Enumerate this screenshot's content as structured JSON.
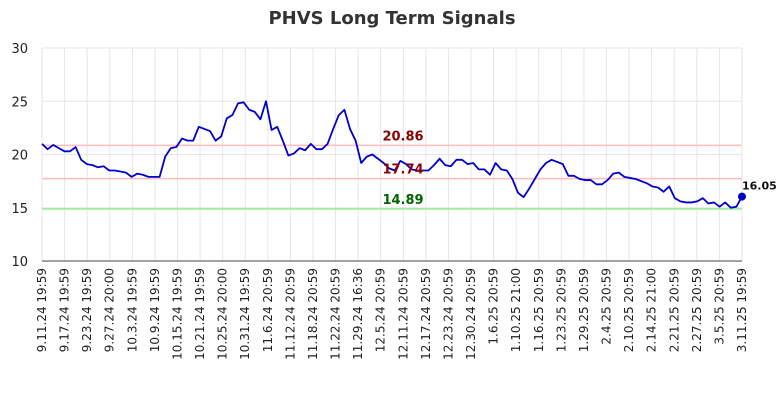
{
  "chart_data": {
    "type": "line",
    "title": "PHVS Long Term Signals",
    "xlabel": "",
    "ylabel": "",
    "ylim": [
      10,
      30
    ],
    "yticks": [
      10,
      15,
      20,
      25,
      30
    ],
    "grid": true,
    "x_tick_labels": [
      "9.11.24 19:59",
      "9.17.24 19:59",
      "9.23.24 19:59",
      "9.27.24 20:00",
      "10.3.24 19:59",
      "10.9.24 19:59",
      "10.15.24 19:59",
      "10.21.24 19:59",
      "10.25.24 20:00",
      "10.31.24 19:59",
      "11.6.24 20:59",
      "11.12.24 20:59",
      "11.18.24 20:59",
      "11.22.24 20:59",
      "11.29.24 16:36",
      "12.5.24 20:59",
      "12.11.24 20:59",
      "12.17.24 20:59",
      "12.23.24 20:59",
      "12.30.24 20:59",
      "1.6.25 20:59",
      "1.10.25 21:00",
      "1.16.25 20:59",
      "1.23.25 20:59",
      "1.29.25 20:59",
      "2.4.25 20:59",
      "2.10.25 20:59",
      "2.14.25 21:00",
      "2.21.25 20:59",
      "2.27.25 20:59",
      "3.5.25 20:59",
      "3.11.25 19:59"
    ],
    "series": [
      {
        "color": "#0000cc",
        "values": [
          21.0,
          20.5,
          20.9,
          20.6,
          20.3,
          20.3,
          20.7,
          19.5,
          19.1,
          19.0,
          18.8,
          18.9,
          18.5,
          18.5,
          18.4,
          18.3,
          17.9,
          18.2,
          18.1,
          17.9,
          17.9,
          17.9,
          19.8,
          20.6,
          20.7,
          21.5,
          21.3,
          21.3,
          22.6,
          22.4,
          22.2,
          21.3,
          21.7,
          23.4,
          23.7,
          24.8,
          24.9,
          24.2,
          24.0,
          23.3,
          25.0,
          22.3,
          22.6,
          21.3,
          19.9,
          20.1,
          20.6,
          20.4,
          21.0,
          20.5,
          20.5,
          21.0,
          22.4,
          23.7,
          24.2,
          22.4,
          21.3,
          19.2,
          19.8,
          20.0,
          19.6,
          19.2,
          18.7,
          18.5,
          19.4,
          19.1,
          18.6,
          18.5,
          18.5,
          18.5,
          19.0,
          19.6,
          19.0,
          18.9,
          19.5,
          19.5,
          19.1,
          19.2,
          18.6,
          18.6,
          18.1,
          19.2,
          18.6,
          18.5,
          17.7,
          16.4,
          16.0,
          16.8,
          17.7,
          18.6,
          19.2,
          19.5,
          19.3,
          19.1,
          18.0,
          18.0,
          17.7,
          17.6,
          17.6,
          17.2,
          17.2,
          17.6,
          18.2,
          18.3,
          17.9,
          17.8,
          17.7,
          17.5,
          17.3,
          17.0,
          16.9,
          16.5,
          17.0,
          15.9,
          15.6,
          15.5,
          15.5,
          15.6,
          15.9,
          15.4,
          15.5,
          15.1,
          15.5,
          15.0,
          15.1,
          16.05
        ]
      }
    ],
    "reference_lines": [
      {
        "value": 20.86,
        "label": "20.86",
        "line_color": "#ffbbbb",
        "text_color": "#8b0000"
      },
      {
        "value": 17.74,
        "label": "17.74",
        "line_color": "#ffbbbb",
        "text_color": "#8b0000"
      },
      {
        "value": 14.89,
        "label": "14.89",
        "line_color": "#90ee90",
        "text_color": "#006400"
      }
    ],
    "last_value_label": "16.05"
  }
}
